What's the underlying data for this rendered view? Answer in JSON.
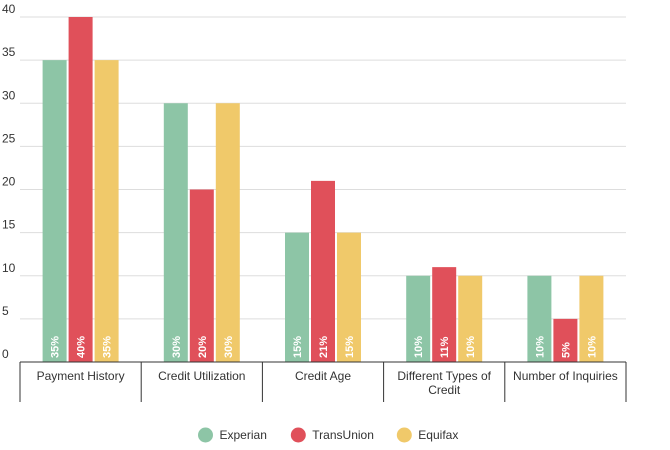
{
  "chart_data": {
    "type": "bar",
    "title": "",
    "xlabel": "",
    "ylabel": "",
    "ylim": [
      0,
      40
    ],
    "yticks": [
      0,
      5,
      10,
      15,
      20,
      25,
      30,
      35,
      40
    ],
    "grid": true,
    "legend_position": "bottom",
    "categories": [
      [
        "Payment History"
      ],
      [
        "Credit Utilization"
      ],
      [
        "Credit Age"
      ],
      [
        "Different Types of",
        "Credit"
      ],
      [
        "Number of Inquiries"
      ]
    ],
    "series": [
      {
        "name": "Experian",
        "color": "#8dc5a6",
        "values": [
          35,
          30,
          15,
          10,
          10
        ],
        "labels": [
          "35%",
          "30%",
          "15%",
          "10%",
          "10%"
        ]
      },
      {
        "name": "TransUnion",
        "color": "#e0505a",
        "values": [
          40,
          20,
          21,
          11,
          5
        ],
        "labels": [
          "40%",
          "20%",
          "21%",
          "11%",
          "5%"
        ]
      },
      {
        "name": "Equifax",
        "color": "#f0c96a",
        "values": [
          35,
          30,
          15,
          10,
          10
        ],
        "labels": [
          "35%",
          "30%",
          "15%",
          "10%",
          "10%"
        ]
      }
    ]
  }
}
